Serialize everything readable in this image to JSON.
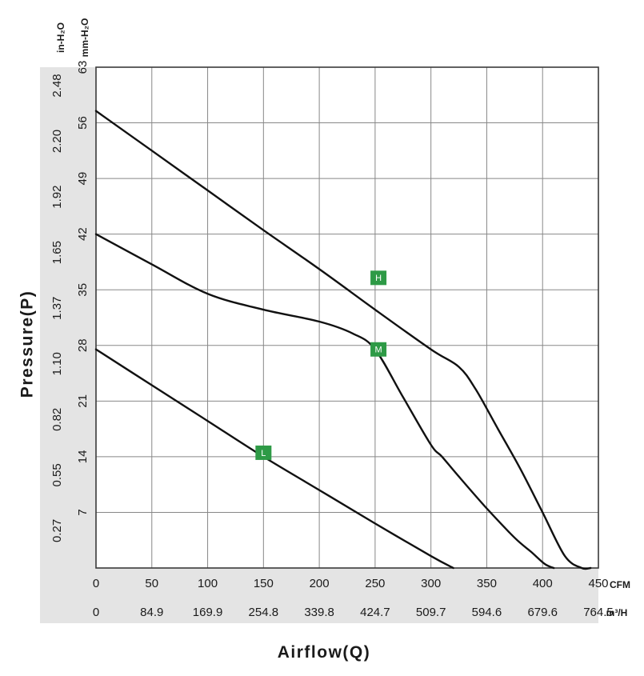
{
  "chart_data": {
    "type": "line",
    "xlabel": "Airflow(Q)",
    "ylabel": "Pressure(P)",
    "x_unit_primary": "CFM",
    "x_unit_secondary": "m³/H",
    "y_unit_primary": "mm-H₂O",
    "y_unit_secondary": "in-H₂O",
    "xlim": [
      0,
      450
    ],
    "ylim": [
      0,
      63
    ],
    "x_ticks": [
      "0",
      "50",
      "100",
      "150",
      "200",
      "250",
      "300",
      "350",
      "400",
      "450"
    ],
    "x_ticks_secondary": [
      "0",
      "84.9",
      "169.9",
      "254.8",
      "339.8",
      "424.7",
      "509.7",
      "594.6",
      "679.6",
      "764.5"
    ],
    "y_ticks": [
      "7",
      "14",
      "21",
      "28",
      "35",
      "42",
      "49",
      "56",
      "63"
    ],
    "y_ticks_secondary": [
      "0.27",
      "0.55",
      "0.82",
      "1.10",
      "1.37",
      "1.65",
      "1.92",
      "2.20",
      "2.48"
    ],
    "grid": true,
    "series": [
      {
        "name": "H",
        "x": [
          0,
          50,
          100,
          150,
          200,
          250,
          300,
          325,
          340,
          360,
          380,
          400,
          420,
          435,
          443
        ],
        "y": [
          57.5,
          52.5,
          47.5,
          42.5,
          37.6,
          32.5,
          27.5,
          25.3,
          22.5,
          17.5,
          12.5,
          7,
          1.5,
          -2,
          -3.5
        ],
        "marker": {
          "label": "H",
          "x": 253,
          "y": 36.5
        }
      },
      {
        "name": "M",
        "x": [
          0,
          50,
          100,
          150,
          200,
          230,
          250,
          275,
          300,
          310,
          325,
          350,
          375,
          390,
          402,
          410
        ],
        "y": [
          42,
          38.2,
          34.5,
          32.5,
          31,
          29.5,
          27.5,
          21.5,
          15.5,
          14,
          11.5,
          7.5,
          3.8,
          2,
          0.5,
          -1.5
        ],
        "marker": {
          "label": "M",
          "x": 253,
          "y": 27.5
        }
      },
      {
        "name": "L",
        "x": [
          0,
          50,
          100,
          150,
          200,
          250,
          300,
          320
        ],
        "y": [
          27.5,
          23,
          18.5,
          14,
          9.8,
          5.6,
          1.5,
          -0.5
        ],
        "marker": {
          "label": "L",
          "x": 150,
          "y": 14.5
        }
      }
    ],
    "colors": {
      "curve": "#111111",
      "grid": "#888888",
      "axis_panel": "#e4e4e4",
      "marker": "#2e9a46"
    }
  }
}
